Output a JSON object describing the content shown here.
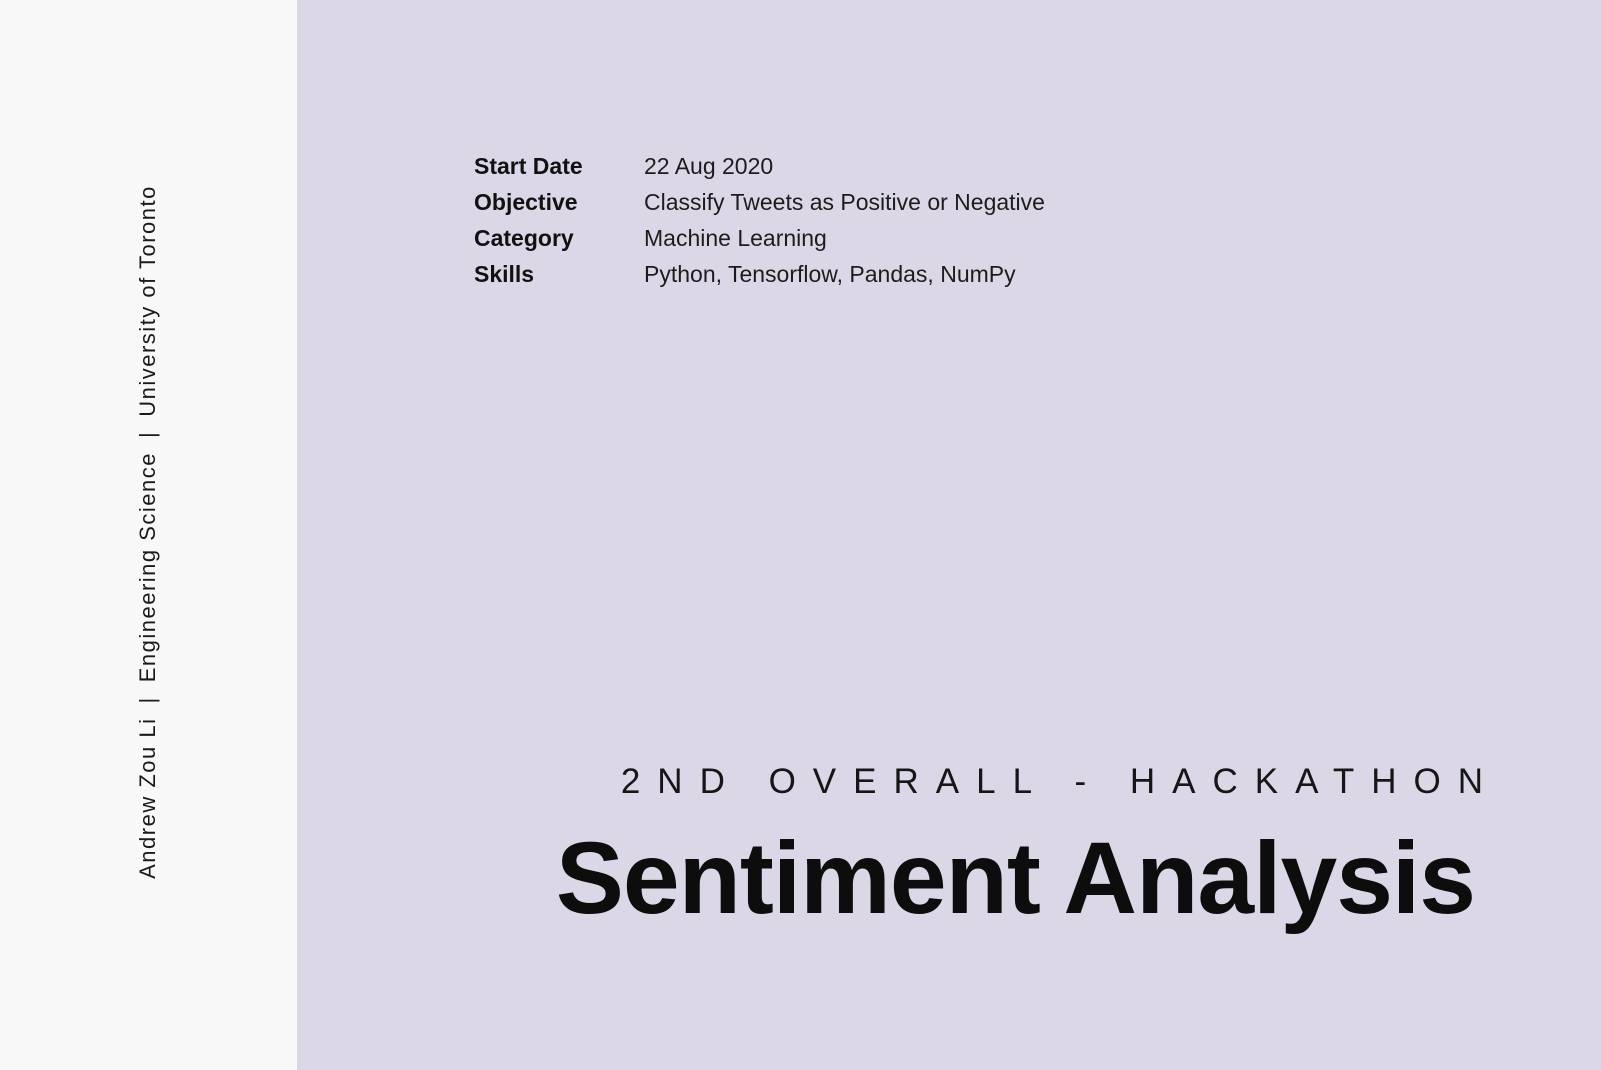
{
  "sidebar": {
    "author": "Andrew Zou Li",
    "separator": "|",
    "program": "Engineering Science",
    "school": "University of Toronto"
  },
  "info": [
    {
      "label": "Start Date",
      "value": "22 Aug 2020"
    },
    {
      "label": "Objective",
      "value": "Classify Tweets as Positive or Negative"
    },
    {
      "label": "Category",
      "value": "Machine Learning"
    },
    {
      "label": "Skills",
      "value": "Python, Tensorflow, Pandas, NumPy"
    }
  ],
  "subtitle": "2ND OVERALL - HACKATHON",
  "title": "Sentiment Analysis",
  "colors": {
    "panel": "#dbd7e7",
    "sidebar": "#f8f8f8",
    "text": "#111111"
  }
}
